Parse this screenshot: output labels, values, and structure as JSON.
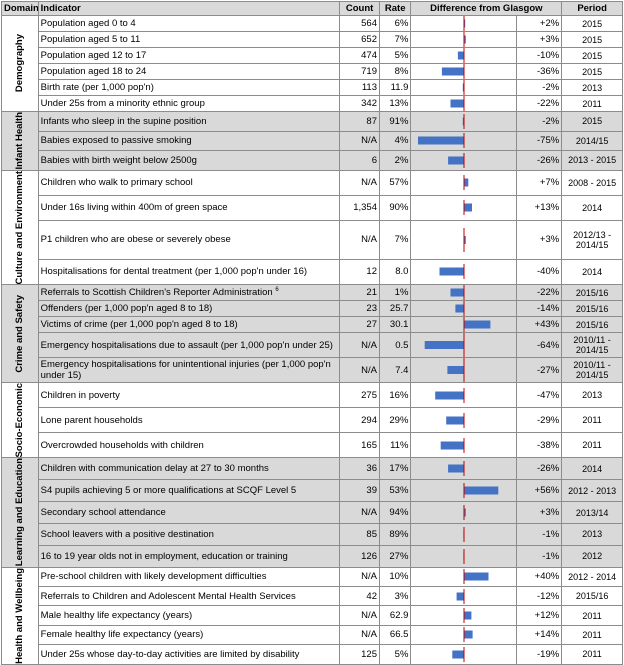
{
  "headers": {
    "domain": "Domain",
    "indicator": "Indicator",
    "count": "Count",
    "rate": "Rate",
    "difference": "Difference from Glasgow",
    "period": "Period"
  },
  "colors": {
    "bar": "#4472c4",
    "zero_line": "#c00000",
    "shade": "#d9d9d9"
  },
  "chart_data": {
    "type": "bar",
    "orientation": "horizontal",
    "xlim": [
      -80,
      60
    ],
    "categories": [
      "Population aged 0 to 4",
      "Population aged 5 to 11",
      "Population aged 12 to 17",
      "Population aged 18 to 24",
      "Birth rate (per 1,000 pop'n)",
      "Under 25s from a minority ethnic group",
      "Infants who sleep in the supine position",
      "Babies exposed to passive smoking",
      "Babies with birth weight below 2500g",
      "Children who walk to primary school",
      "Under 16s living within 400m of green space",
      "P1 children who are obese or severely obese",
      "Hospitalisations for dental treatment (per 1,000 pop'n under 16)",
      "Referrals to Scottish Children's Reporter Administration",
      "Offenders (per 1,000 pop'n aged 8 to 18)",
      "Victims of crime (per 1,000 pop'n aged 8 to 18)",
      "Emergency hospitalisations due to assault (per 1,000 pop'n under 25)",
      "Emergency hospitalisations for unintentional injuries (per 1,000 pop'n under 15)",
      "Children in poverty",
      "Lone parent households",
      "Overcrowded households with children",
      "Children with communication delay at 27 to 30 months",
      "S4 pupils achieving 5 or more qualifications at SCQF Level 5",
      "Secondary school attendance",
      "School leavers with a positive destination",
      "16 to 19 year olds not in employment, education or training",
      "Pre-school children with likely development difficulties",
      "Referrals to Children and Adolescent Mental Health Services",
      "Male healthy life expectancy (years)",
      "Female healthy life expectancy (years)",
      "Under 25s whose day-to-day activities are limited by disability"
    ],
    "values": [
      2,
      3,
      -10,
      -36,
      -2,
      -22,
      -2,
      -75,
      -26,
      7,
      13,
      3,
      -40,
      -22,
      -14,
      43,
      -64,
      -27,
      -47,
      -29,
      -38,
      -26,
      56,
      3,
      -1,
      -1,
      40,
      -12,
      12,
      14,
      -19
    ]
  },
  "sections": [
    {
      "domain": "Demography",
      "shade": false,
      "rows": [
        {
          "indicator": "Population aged 0 to 4",
          "count": "564",
          "rate": "6%",
          "diff": "+2%",
          "period": "2015"
        },
        {
          "indicator": "Population aged 5 to 11",
          "count": "652",
          "rate": "7%",
          "diff": "+3%",
          "period": "2015"
        },
        {
          "indicator": "Population aged 12 to 17",
          "count": "474",
          "rate": "5%",
          "diff": "-10%",
          "period": "2015"
        },
        {
          "indicator": "Population aged 18 to 24",
          "count": "719",
          "rate": "8%",
          "diff": "-36%",
          "period": "2015"
        },
        {
          "indicator": "Birth rate (per 1,000 pop'n)",
          "count": "113",
          "rate": "11.9",
          "diff": "-2%",
          "period": "2013"
        },
        {
          "indicator": "Under 25s from a minority ethnic group",
          "count": "342",
          "rate": "13%",
          "diff": "-22%",
          "period": "2011"
        }
      ]
    },
    {
      "domain": "Infant Health",
      "shade": true,
      "rows": [
        {
          "indicator": "Infants who sleep in the supine position",
          "count": "87",
          "rate": "91%",
          "diff": "-2%",
          "period": "2015"
        },
        {
          "indicator": "Babies exposed to passive smoking",
          "count": "N/A",
          "rate": "4%",
          "diff": "-75%",
          "period": "2014/15"
        },
        {
          "indicator": "Babies with birth weight below 2500g",
          "count": "6",
          "rate": "2%",
          "diff": "-26%",
          "period": "2013 - 2015"
        }
      ]
    },
    {
      "domain": "Culture and Environment",
      "shade": false,
      "rows": [
        {
          "indicator": "Children who walk to primary school",
          "count": "N/A",
          "rate": "57%",
          "diff": "+7%",
          "period": "2008 - 2015"
        },
        {
          "indicator": "Under 16s living within 400m of green space",
          "count": "1,354",
          "rate": "90%",
          "diff": "+13%",
          "period": "2014"
        },
        {
          "indicator": "P1 children who are obese or severely obese",
          "count": "N/A",
          "rate": "7%",
          "diff": "+3%",
          "period": "2012/13 - 2014/15",
          "tall": true
        },
        {
          "indicator": "Hospitalisations for dental treatment (per 1,000 pop'n under 16)",
          "count": "12",
          "rate": "8.0",
          "diff": "-40%",
          "period": "2014"
        }
      ]
    },
    {
      "domain": "Crime and Safety",
      "shade": true,
      "rows": [
        {
          "indicator": "Referrals to Scottish Children's Reporter Administration",
          "sup": "6",
          "count": "21",
          "rate": "1%",
          "diff": "-22%",
          "period": "2015/16"
        },
        {
          "indicator": "Offenders (per 1,000 pop'n aged 8 to 18)",
          "count": "23",
          "rate": "25.7",
          "diff": "-14%",
          "period": "2015/16"
        },
        {
          "indicator": "Victims of crime (per 1,000 pop'n aged 8 to 18)",
          "count": "27",
          "rate": "30.1",
          "diff": "+43%",
          "period": "2015/16"
        },
        {
          "indicator": "Emergency hospitalisations due to assault (per 1,000 pop'n under 25)",
          "count": "N/A",
          "rate": "0.5",
          "diff": "-64%",
          "period": "2010/11 - 2014/15",
          "tall": true
        },
        {
          "indicator": "Emergency hospitalisations for unintentional injuries (per 1,000 pop'n under 15)",
          "count": "N/A",
          "rate": "7.4",
          "diff": "-27%",
          "period": "2010/11 - 2014/15",
          "tall": true
        }
      ]
    },
    {
      "domain": "Socio-Economic",
      "shade": false,
      "rows": [
        {
          "indicator": "Children in poverty",
          "count": "275",
          "rate": "16%",
          "diff": "-47%",
          "period": "2013"
        },
        {
          "indicator": "Lone parent households",
          "count": "294",
          "rate": "29%",
          "diff": "-29%",
          "period": "2011"
        },
        {
          "indicator": "Overcrowded households with children",
          "count": "165",
          "rate": "11%",
          "diff": "-38%",
          "period": "2011"
        }
      ]
    },
    {
      "domain": "Learning and Education",
      "shade": true,
      "rows": [
        {
          "indicator": "Children with communication delay at 27 to 30 months",
          "count": "36",
          "rate": "17%",
          "diff": "-26%",
          "period": "2014"
        },
        {
          "indicator": "S4 pupils achieving 5 or more qualifications at SCQF Level 5",
          "count": "39",
          "rate": "53%",
          "diff": "+56%",
          "period": "2012 - 2013"
        },
        {
          "indicator": "Secondary school attendance",
          "count": "N/A",
          "rate": "94%",
          "diff": "+3%",
          "period": "2013/14"
        },
        {
          "indicator": "School leavers with a positive destination",
          "count": "85",
          "rate": "89%",
          "diff": "-1%",
          "period": "2013"
        },
        {
          "indicator": "16 to 19 year olds not in employment, education or training",
          "count": "126",
          "rate": "27%",
          "diff": "-1%",
          "period": "2012"
        }
      ]
    },
    {
      "domain": "Health and Wellbeing",
      "shade": false,
      "rows": [
        {
          "indicator": "Pre-school children with likely development difficulties",
          "count": "N/A",
          "rate": "10%",
          "diff": "+40%",
          "period": "2012 - 2014"
        },
        {
          "indicator": "Referrals to Children and Adolescent Mental Health Services",
          "count": "42",
          "rate": "3%",
          "diff": "-12%",
          "period": "2015/16"
        },
        {
          "indicator": "Male healthy life expectancy (years)",
          "count": "N/A",
          "rate": "62.9",
          "diff": "+12%",
          "period": "2011"
        },
        {
          "indicator": "Female healthy life expectancy (years)",
          "count": "N/A",
          "rate": "66.5",
          "diff": "+14%",
          "period": "2011"
        },
        {
          "indicator": "Under 25s whose day-to-day activities are limited by disability",
          "count": "125",
          "rate": "5%",
          "diff": "-19%",
          "period": "2011"
        }
      ]
    }
  ]
}
